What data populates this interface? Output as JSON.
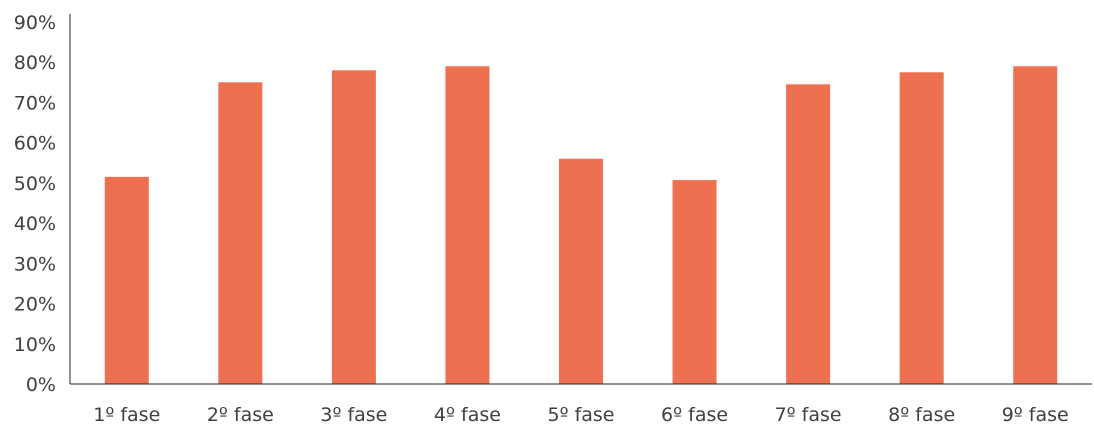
{
  "chart_data": {
    "type": "bar",
    "title": "",
    "xlabel": "",
    "ylabel": "",
    "categories": [
      "1º fase",
      "2º fase",
      "3º fase",
      "4º fase",
      "5º fase",
      "6º fase",
      "7º fase",
      "8º fase",
      "9º fase"
    ],
    "values": [
      51.5,
      75,
      78,
      79,
      56,
      50.7,
      74.5,
      77.5,
      79
    ],
    "y_unit": "%",
    "ylim": [
      0,
      90
    ],
    "y_ticks": [
      0,
      10,
      20,
      30,
      40,
      50,
      60,
      70,
      80,
      90
    ],
    "y_tick_labels": [
      "0%",
      "10%",
      "20%",
      "30%",
      "40%",
      "50%",
      "60%",
      "70%",
      "80%",
      "90%"
    ],
    "grid": false,
    "legend": "none",
    "bar_color": "#ED7050"
  }
}
